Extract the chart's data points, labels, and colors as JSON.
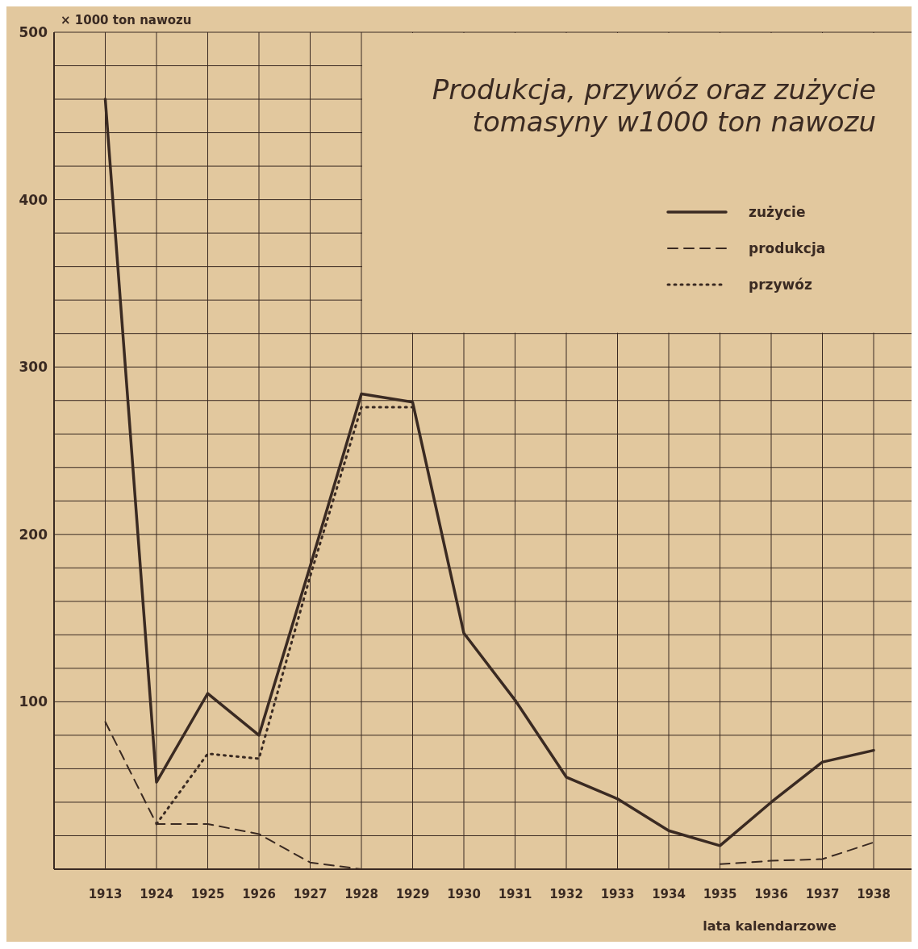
{
  "chart_data": {
    "type": "line",
    "title": "Produkcja, przywóz oraz  zużycie\ntomasyny w1000 ton nawozu",
    "ylabel": "× 1000 ton nawozu",
    "xlabel": "lata kalendarzowe",
    "categories": [
      "1913",
      "1924",
      "1925",
      "1926",
      "1927",
      "1928",
      "1929",
      "1930",
      "1931",
      "1932",
      "1933",
      "1934",
      "1935",
      "1936",
      "1937",
      "1938"
    ],
    "ylim": [
      0,
      500
    ],
    "yticks": [
      {
        "value": 0,
        "label": null
      },
      {
        "value": 20,
        "label": null
      },
      {
        "value": 40,
        "label": null
      },
      {
        "value": 60,
        "label": null
      },
      {
        "value": 80,
        "label": null
      },
      100,
      {
        "value": 120,
        "label": null
      },
      {
        "value": 140,
        "label": null
      },
      {
        "value": 160,
        "label": null
      },
      {
        "value": 180,
        "label": null
      },
      200,
      {
        "value": 220,
        "label": null
      },
      {
        "value": 240,
        "label": null
      },
      {
        "value": 260,
        "label": null
      },
      {
        "value": 280,
        "label": null
      },
      300,
      {
        "value": 320,
        "label": null
      },
      {
        "value": 340,
        "label": null
      },
      {
        "value": 360,
        "label": null
      },
      {
        "value": 380,
        "label": null
      },
      400,
      {
        "value": 420,
        "label": null
      },
      {
        "value": 440,
        "label": null
      },
      {
        "value": 460,
        "label": null
      },
      {
        "value": 480,
        "label": null
      },
      500
    ],
    "grid": true,
    "legend": "top right",
    "marker": "none",
    "series": [
      {
        "name": "zużycie",
        "color": "#3a2a22",
        "line_style": "solid",
        "values": [
          460,
          52,
          105,
          80,
          181,
          284,
          279,
          141,
          101,
          55,
          42,
          23,
          14,
          40,
          64,
          71
        ]
      },
      {
        "name": "produkcja",
        "color": "#3a2a22",
        "line_style": "dashed",
        "values": [
          88,
          27,
          27,
          21,
          4,
          0,
          null,
          null,
          null,
          null,
          null,
          null,
          3,
          5,
          6,
          16
        ]
      },
      {
        "name": "przywóz",
        "color": "#3a2a22",
        "line_style": "dotted",
        "values": [
          null,
          27,
          69,
          66,
          175,
          276,
          276,
          null,
          null,
          null,
          null,
          null,
          null,
          null,
          null,
          null
        ]
      }
    ]
  }
}
